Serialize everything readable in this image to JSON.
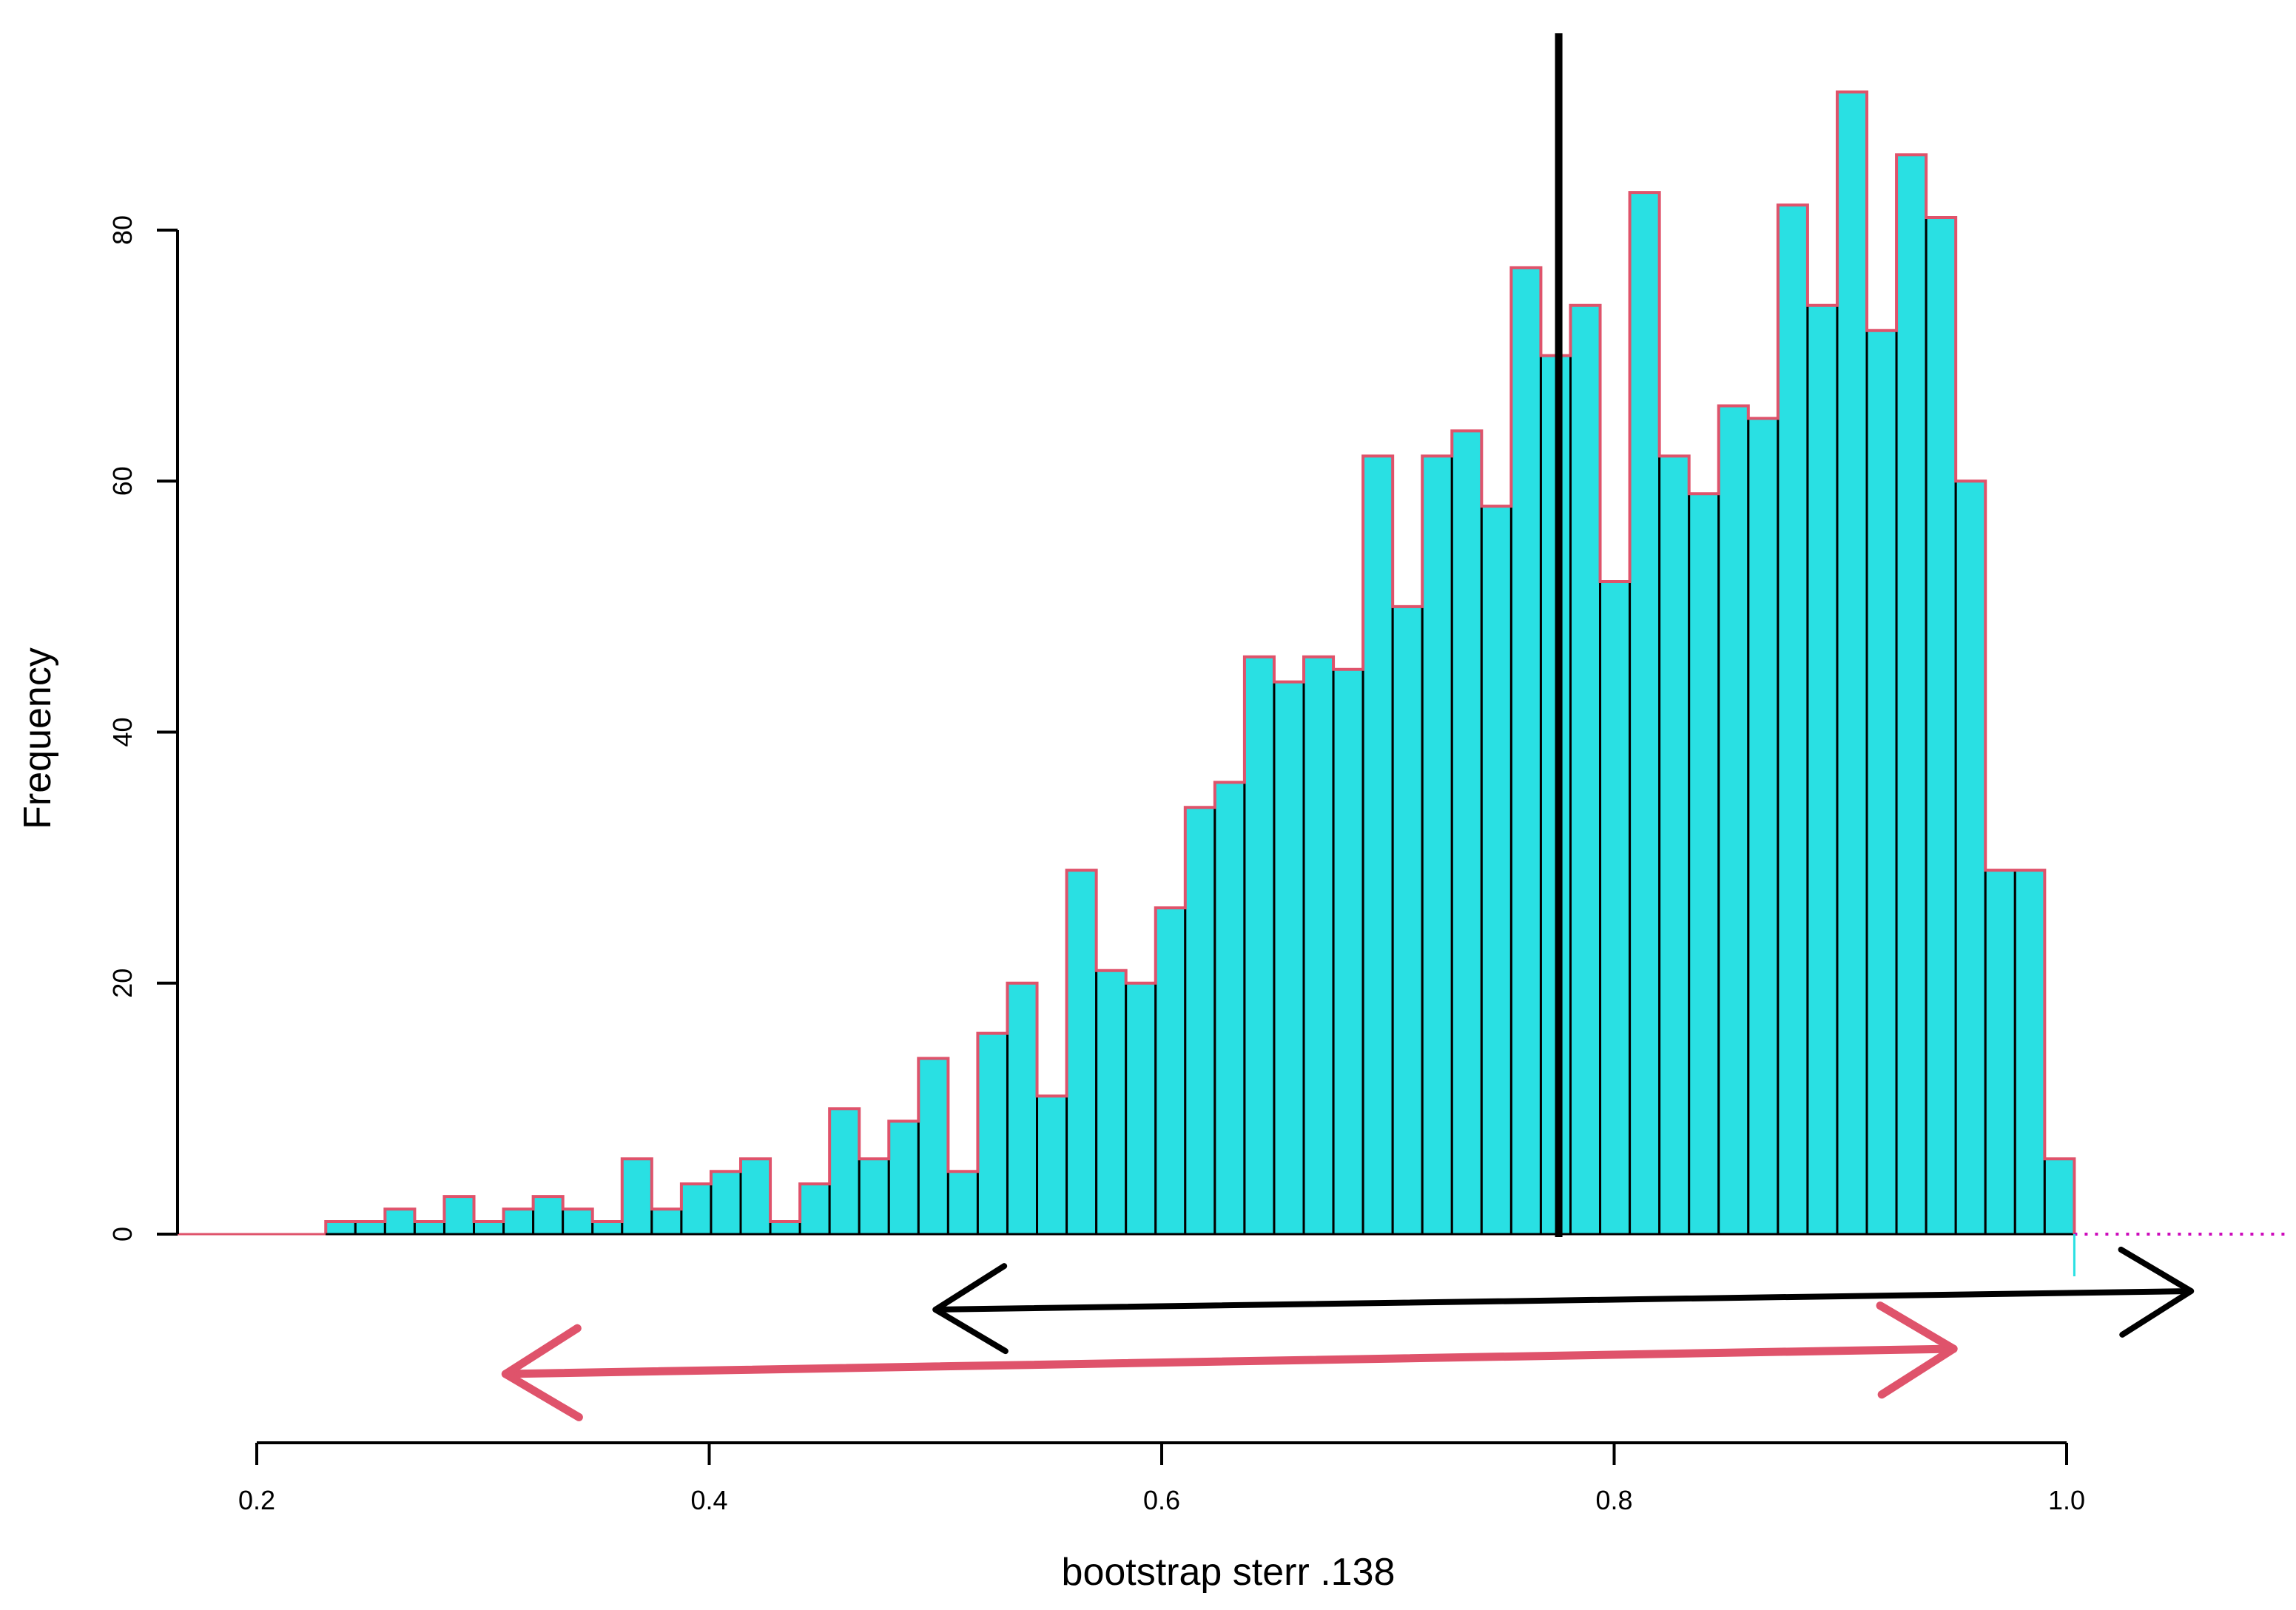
{
  "chart_data": {
    "type": "bar",
    "subtype": "histogram",
    "xlabel": "bootstrap sterr .138",
    "ylabel": "Frequency",
    "xlim": [
      0.13,
      1.18
    ],
    "ylim": [
      0,
      95
    ],
    "x_ticks": [
      0.2,
      0.4,
      0.6,
      0.8,
      1.0
    ],
    "x_tick_labels": [
      "0.2",
      "0.4",
      "0.6",
      "0.8",
      "1.0"
    ],
    "y_ticks": [
      0,
      20,
      40,
      60,
      80
    ],
    "y_tick_labels": [
      "0",
      "20",
      "40",
      "60",
      "80"
    ],
    "bin_start": 0.2305,
    "bin_width": 0.0131,
    "values": [
      1,
      1,
      2,
      1,
      3,
      1,
      2,
      3,
      2,
      1,
      6,
      2,
      4,
      5,
      6,
      1,
      4,
      10,
      6,
      9,
      14,
      5,
      16,
      20,
      11,
      29,
      21,
      20,
      26,
      34,
      36,
      46,
      44,
      46,
      45,
      62,
      50,
      62,
      64,
      58,
      77,
      70,
      74,
      52,
      83,
      62,
      59,
      66,
      65,
      82,
      74,
      91,
      72,
      86,
      81,
      60,
      29,
      29,
      6
    ],
    "vertical_line_x": 0.7755,
    "interval_black": {
      "lower": 0.5,
      "upper": 1.055
    },
    "interval_red": {
      "lower": 0.31,
      "upper": 0.95
    },
    "colors": {
      "bar_fill": "#29E0E3",
      "outer_outline": "#DF536B",
      "inner_outline": "#000000",
      "baseline_dotted": "#CD0BBC",
      "black_arrow": "#000000",
      "red_arrow": "#DF536B",
      "cyan_tick": "#29E0E3"
    },
    "grid": false,
    "legend": "none"
  }
}
